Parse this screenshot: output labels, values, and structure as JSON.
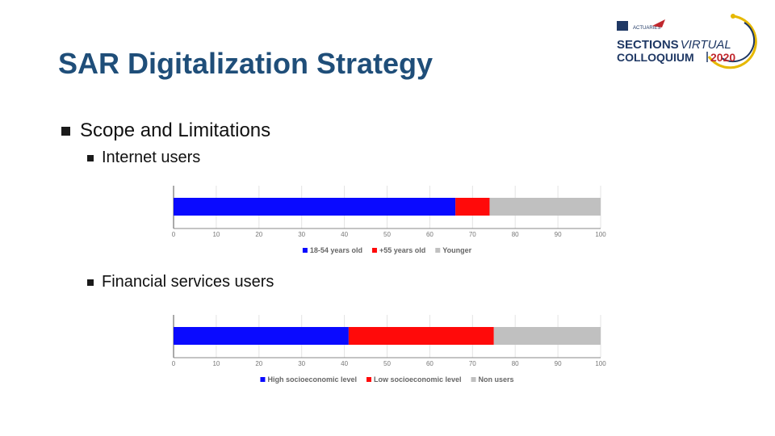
{
  "slide": {
    "title": "SAR Digitalization Strategy",
    "bullet_main": "Scope and Limitations",
    "bullet_internet": "Internet users",
    "bullet_financial": "Financial services users"
  },
  "logo": {
    "line1a": "SECTIONS",
    "line1b": "VIRTUAL",
    "line2": "COLLOQUIUM",
    "year": "2020",
    "badge": "ACTUARIES",
    "colors": {
      "navy": "#1f3864",
      "accent": "#c0272d",
      "ring": "#e6b800"
    }
  },
  "colors": {
    "blue": "#0a0aff",
    "red": "#ff0a0a",
    "gray": "#c0c0c0",
    "title": "#1f4e79"
  },
  "chart_data": [
    {
      "type": "bar",
      "orientation": "horizontal",
      "stacked": true,
      "xlim": [
        0,
        100
      ],
      "ticks": [
        "0",
        "10",
        "20",
        "30",
        "40",
        "50",
        "60",
        "70",
        "80",
        "90",
        "100"
      ],
      "grid": true,
      "legend_position": "bottom",
      "series": [
        {
          "name": "18-54 years old",
          "values": [
            66
          ],
          "color": "#0a0aff"
        },
        {
          "name": "+55 years old",
          "values": [
            8
          ],
          "color": "#ff0a0a"
        },
        {
          "name": "Younger",
          "values": [
            26
          ],
          "color": "#c0c0c0"
        }
      ]
    },
    {
      "type": "bar",
      "orientation": "horizontal",
      "stacked": true,
      "xlim": [
        0,
        100
      ],
      "ticks": [
        "0",
        "10",
        "20",
        "30",
        "40",
        "50",
        "60",
        "70",
        "80",
        "90",
        "100"
      ],
      "grid": true,
      "legend_position": "bottom",
      "series": [
        {
          "name": "High socioeconomic level",
          "values": [
            41
          ],
          "color": "#0a0aff"
        },
        {
          "name": "Low socioeconomic level",
          "values": [
            34
          ],
          "color": "#ff0a0a"
        },
        {
          "name": "Non users",
          "values": [
            25
          ],
          "color": "#c0c0c0"
        }
      ]
    }
  ]
}
